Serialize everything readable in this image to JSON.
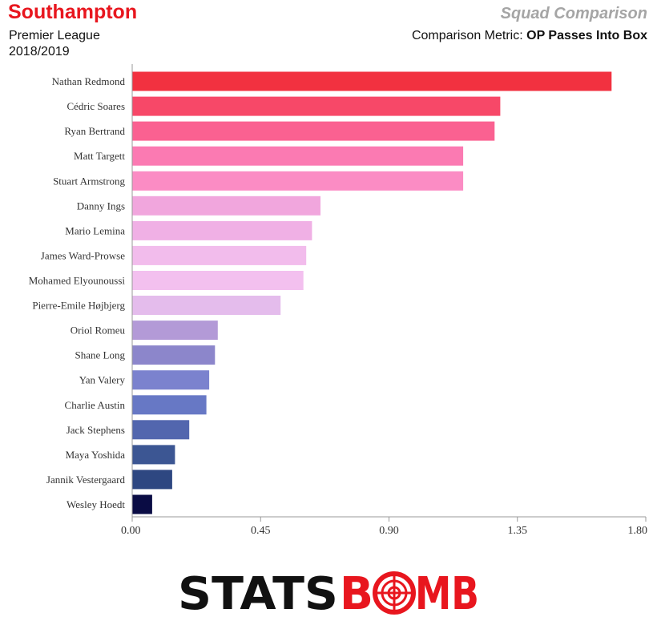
{
  "header": {
    "team": "Southampton",
    "league": "Premier League",
    "season": "2018/2019",
    "chart_title": "Squad Comparison",
    "metric_label": "Comparison Metric:",
    "metric_name": "OP Passes Into Box"
  },
  "colors": {
    "team": "#e8161e",
    "chart_title": "#a5a5a5",
    "axis": "#999999",
    "logo_black": "#111111",
    "logo_red": "#e8161e"
  },
  "logo": {
    "text_black": "STATS",
    "text_red": "B",
    "text_red2": "MB",
    "ring_red": "O"
  },
  "chart_data": {
    "type": "bar",
    "orientation": "horizontal",
    "categories": [
      "Nathan Redmond",
      "Cédric Soares",
      "Ryan Bertrand",
      "Matt Targett",
      "Stuart Armstrong",
      "Danny Ings",
      "Mario Lemina",
      "James Ward-Prowse",
      "Mohamed Elyounoussi",
      "Pierre-Emile Højbjerg",
      "Oriol Romeu",
      "Shane Long",
      "Yan Valery",
      "Charlie Austin",
      "Jack Stephens",
      "Maya Yoshida",
      "Jannik Vestergaard",
      "Wesley Hoedt"
    ],
    "values": [
      1.68,
      1.29,
      1.27,
      1.16,
      1.16,
      0.66,
      0.63,
      0.61,
      0.6,
      0.52,
      0.3,
      0.29,
      0.27,
      0.26,
      0.2,
      0.15,
      0.14,
      0.07
    ],
    "colors": [
      "#f23140",
      "#f74868",
      "#fa6191",
      "#fb7ab2",
      "#fb8cc4",
      "#f1a6dd",
      "#f0b0e5",
      "#f2bcec",
      "#f3c0ef",
      "#e4bcec",
      "#b39ad7",
      "#8c86cb",
      "#7b82ce",
      "#6778c5",
      "#5266ae",
      "#3c5693",
      "#2e4781",
      "#0a0c44"
    ],
    "xlim": [
      0,
      1.8
    ],
    "xticks": [
      "0.00",
      "0.45",
      "0.90",
      "1.35",
      "1.80"
    ],
    "tick_values": [
      0,
      0.45,
      0.9,
      1.35,
      1.8
    ],
    "grid": false
  }
}
